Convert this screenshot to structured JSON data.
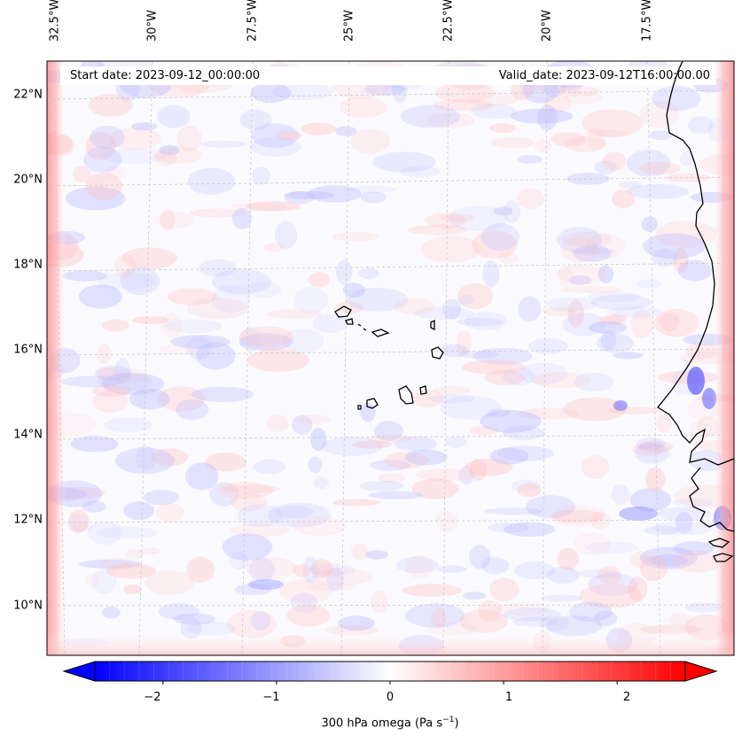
{
  "header": {
    "start_date": "Start date: 2023-09-12_00:00:00",
    "valid_date": "Valid_date: 2023-09-12T16:00:00.00"
  },
  "map": {
    "longitude_labels": [
      "32.5°W",
      "30°W",
      "27.5°W",
      "25°W",
      "22.5°W",
      "20°W",
      "17.5°W"
    ],
    "latitude_labels": [
      "22°N",
      "20°N",
      "18°N",
      "16°N",
      "14°N",
      "12°N",
      "10°N"
    ],
    "field": "300 hPa omega",
    "colormap": "bwr",
    "colors": {
      "min": "#0000ff",
      "zero": "#ffffff",
      "max": "#ff0000",
      "coast": "#000000",
      "grid": "#b0b0b0"
    }
  },
  "colorbar": {
    "ticks": [
      "−2",
      "−1",
      "0",
      "1",
      "2"
    ],
    "tick_values": [
      -2,
      -1,
      0,
      1,
      2
    ],
    "range": [
      -2.6,
      2.6
    ],
    "extend": "both",
    "label_text": "300 hPa omega (Pa s",
    "label_sup": "−1",
    "label_close": ")"
  }
}
